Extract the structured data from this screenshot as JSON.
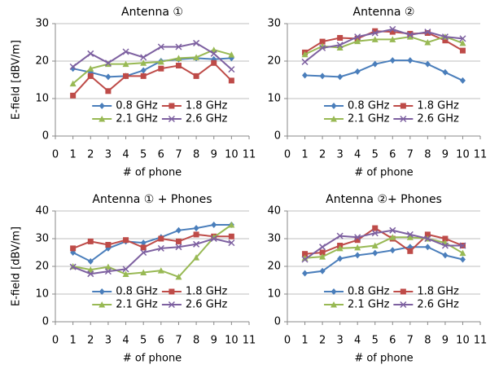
{
  "chart_data": [
    {
      "type": "line",
      "title": "Antenna ①",
      "x_label": "# of phone",
      "y_label": "E-field [dBV/m]",
      "x": [
        1,
        2,
        3,
        4,
        5,
        6,
        7,
        8,
        9,
        10
      ],
      "xlim": [
        0,
        11
      ],
      "xticks": [
        0,
        1,
        2,
        3,
        4,
        5,
        6,
        7,
        8,
        9,
        10,
        11
      ],
      "ylim": [
        0,
        30
      ],
      "yticks": [
        0,
        10,
        20,
        30
      ],
      "grid": true,
      "legend": "lower center",
      "series": [
        {
          "name": "0.8 GHz",
          "color": "#4a7ebb",
          "marker": "diamond",
          "values": [
            18,
            17,
            15.8,
            16,
            17.5,
            20,
            20.5,
            20.8,
            20.5,
            20.8
          ]
        },
        {
          "name": "1.8 GHz",
          "color": "#be4b48",
          "marker": "square",
          "values": [
            10.8,
            16,
            12,
            16,
            16,
            18,
            18.8,
            16,
            19.5,
            14.8
          ]
        },
        {
          "name": "2.1 GHz",
          "color": "#98b954",
          "marker": "triangle",
          "values": [
            14,
            18,
            19.2,
            19.2,
            19.5,
            19.8,
            20.8,
            21,
            23,
            21.7
          ]
        },
        {
          "name": "2.6 GHz",
          "color": "#7d60a0",
          "marker": "cross",
          "values": [
            18.5,
            22,
            19.5,
            22.5,
            21,
            23.8,
            23.8,
            24.8,
            22,
            17.8
          ]
        }
      ]
    },
    {
      "type": "line",
      "title": "Antenna ②",
      "x_label": "# of phone",
      "x": [
        1,
        2,
        3,
        4,
        5,
        6,
        7,
        8,
        9,
        10
      ],
      "xlim": [
        0,
        11
      ],
      "xticks": [
        0,
        1,
        2,
        3,
        4,
        5,
        6,
        7,
        8,
        9,
        10,
        11
      ],
      "ylim": [
        0,
        30
      ],
      "yticks": [
        0,
        10,
        20,
        30
      ],
      "grid": true,
      "legend": "lower center",
      "series": [
        {
          "name": "0.8 GHz",
          "color": "#4a7ebb",
          "marker": "diamond",
          "values": [
            16.2,
            16,
            15.8,
            17.2,
            19.2,
            20.2,
            20.2,
            19.2,
            17,
            14.8
          ]
        },
        {
          "name": "1.8 GHz",
          "color": "#be4b48",
          "marker": "square",
          "values": [
            22.3,
            25.2,
            26.2,
            26,
            28,
            27.8,
            27.3,
            27.5,
            25.5,
            22.8
          ]
        },
        {
          "name": "2.1 GHz",
          "color": "#98b954",
          "marker": "triangle",
          "values": [
            21.8,
            24,
            23.6,
            25.3,
            25.8,
            25.8,
            26.5,
            25,
            26.5,
            24.8
          ]
        },
        {
          "name": "2.6 GHz",
          "color": "#7d60a0",
          "marker": "cross",
          "values": [
            19.8,
            23.5,
            24.3,
            26.5,
            27.5,
            28.5,
            27,
            27.8,
            26.5,
            26
          ]
        }
      ]
    },
    {
      "type": "line",
      "title": "Antenna ① + Phones",
      "x_label": "# of phone",
      "y_label": "E-field [dBV/m]",
      "x": [
        1,
        2,
        3,
        4,
        5,
        6,
        7,
        8,
        9,
        10
      ],
      "xlim": [
        0,
        11
      ],
      "xticks": [
        0,
        1,
        2,
        3,
        4,
        5,
        6,
        7,
        8,
        9,
        10,
        11
      ],
      "ylim": [
        0,
        40
      ],
      "yticks": [
        0,
        10,
        20,
        30,
        40
      ],
      "grid": true,
      "legend": "lower center",
      "series": [
        {
          "name": "0.8 GHz",
          "color": "#4a7ebb",
          "marker": "diamond",
          "values": [
            25,
            21.8,
            26.5,
            29,
            28.5,
            30.5,
            33,
            33.8,
            35,
            35
          ]
        },
        {
          "name": "1.8 GHz",
          "color": "#be4b48",
          "marker": "square",
          "values": [
            26.5,
            29,
            27.8,
            29.5,
            26.8,
            30,
            29,
            31.5,
            30.8,
            30.8
          ]
        },
        {
          "name": "2.1 GHz",
          "color": "#98b954",
          "marker": "triangle",
          "values": [
            20,
            18.8,
            19.8,
            17.2,
            17.8,
            18.5,
            16.2,
            23.2,
            30.5,
            35
          ]
        },
        {
          "name": "2.6 GHz",
          "color": "#7d60a0",
          "marker": "cross",
          "values": [
            19.8,
            17.3,
            18.2,
            19,
            25,
            26.5,
            27,
            28,
            30,
            28.5
          ]
        }
      ]
    },
    {
      "type": "line",
      "title": "Antenna ②+ Phones",
      "x_label": "# of phone",
      "x": [
        1,
        2,
        3,
        4,
        5,
        6,
        7,
        8,
        9,
        10
      ],
      "xlim": [
        0,
        11
      ],
      "xticks": [
        0,
        1,
        2,
        3,
        4,
        5,
        6,
        7,
        8,
        9,
        10,
        11
      ],
      "ylim": [
        0,
        40
      ],
      "yticks": [
        0,
        10,
        20,
        30,
        40
      ],
      "grid": true,
      "legend": "lower center",
      "series": [
        {
          "name": "0.8 GHz",
          "color": "#4a7ebb",
          "marker": "diamond",
          "values": [
            17.5,
            18.3,
            22.8,
            24,
            24.8,
            25.8,
            27,
            27,
            24,
            22.5
          ]
        },
        {
          "name": "1.8 GHz",
          "color": "#be4b48",
          "marker": "square",
          "values": [
            24.5,
            25,
            27.5,
            29.5,
            33.8,
            30,
            25.5,
            31.5,
            30,
            27.5
          ]
        },
        {
          "name": "2.1 GHz",
          "color": "#98b954",
          "marker": "triangle",
          "values": [
            23,
            23.5,
            26.5,
            26.8,
            27.5,
            30.5,
            30.5,
            30,
            28.5,
            24.8
          ]
        },
        {
          "name": "2.6 GHz",
          "color": "#7d60a0",
          "marker": "cross",
          "values": [
            22.5,
            27,
            31,
            30.5,
            32,
            33,
            31.5,
            30,
            27.5,
            27.5
          ]
        }
      ]
    }
  ]
}
